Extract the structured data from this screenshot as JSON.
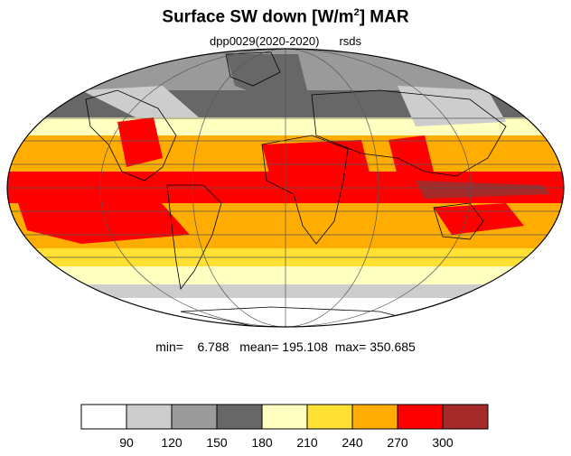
{
  "title": {
    "main": "Surface SW down [W/m",
    "superscript": "2",
    "suffix": "]  MAR"
  },
  "subtitle": {
    "left": "dpp0029(2020-2020)",
    "right": "rsds"
  },
  "stats": {
    "min_label": "min=",
    "min_value": "6.788",
    "mean_label": "mean=",
    "mean_value": "195.108",
    "max_label": "max=",
    "max_value": "350.685"
  },
  "colorbar": {
    "levels": [
      "90",
      "120",
      "150",
      "180",
      "210",
      "240",
      "270",
      "300"
    ],
    "colors": [
      "#ffffff",
      "#cdcdcd",
      "#9a9a9a",
      "#676767",
      "#ffffc0",
      "#ffe033",
      "#ffad00",
      "#ff0000",
      "#a52a2a"
    ]
  }
}
